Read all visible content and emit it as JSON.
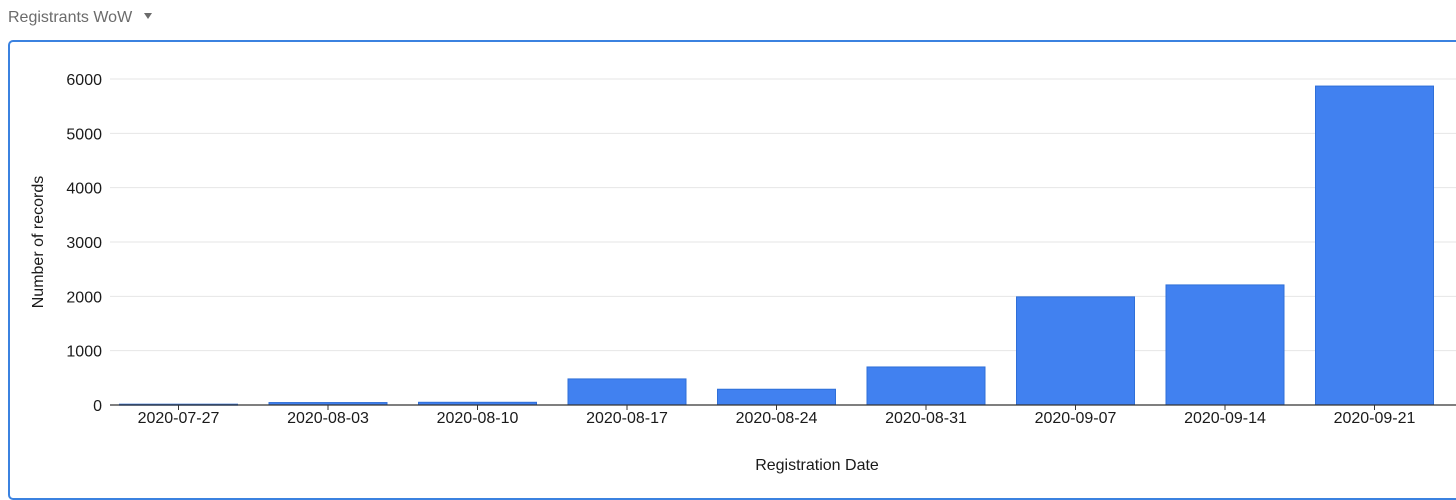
{
  "header": {
    "title": "Registrants WoW",
    "dropdown_icon": "caret-down-icon"
  },
  "colors": {
    "bar": "#4181f0",
    "bar_stroke": "#2f6fd8",
    "panel_border": "#3b82e0",
    "grid": "#e6e6e6",
    "axis": "#333333"
  },
  "chart_data": {
    "type": "bar",
    "categories": [
      "2020-07-27",
      "2020-08-03",
      "2020-08-10",
      "2020-08-17",
      "2020-08-24",
      "2020-08-31",
      "2020-09-07",
      "2020-09-14",
      "2020-09-21"
    ],
    "values": [
      15,
      45,
      50,
      480,
      290,
      700,
      1990,
      2210,
      5870
    ],
    "xlabel": "Registration Date",
    "ylabel": "Number of records",
    "ylim": [
      0,
      6000
    ],
    "yticks": [
      0,
      1000,
      2000,
      3000,
      4000,
      5000,
      6000
    ],
    "grid": true,
    "legend": "none"
  }
}
